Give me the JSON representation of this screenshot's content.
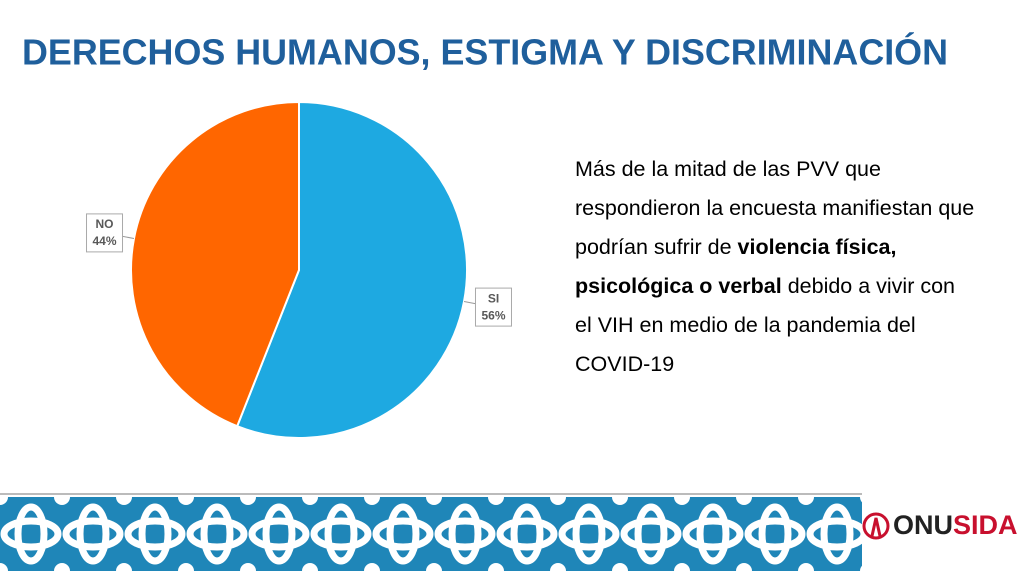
{
  "chart_data": {
    "type": "pie",
    "title": "DERECHOS HUMANOS, ESTIGMA Y DISCRIMINACIÓN",
    "categories": [
      "SI",
      "NO"
    ],
    "values": [
      56,
      44
    ],
    "value_labels": [
      "56%",
      "44%"
    ],
    "colors": [
      "#1ea9e1",
      "#ff6600"
    ]
  },
  "paragraph": [
    {
      "text": "Más de la mitad de las PVV que respondieron la encuesta manifiestan que podrían sufrir de ",
      "bold": false
    },
    {
      "text": "violencia física, psicológica o verbal",
      "bold": true
    },
    {
      "text": " debido a vivir con el VIH en medio de la pandemia del COVID-19",
      "bold": false
    }
  ],
  "logo": [
    "ONU",
    "SIDA"
  ]
}
